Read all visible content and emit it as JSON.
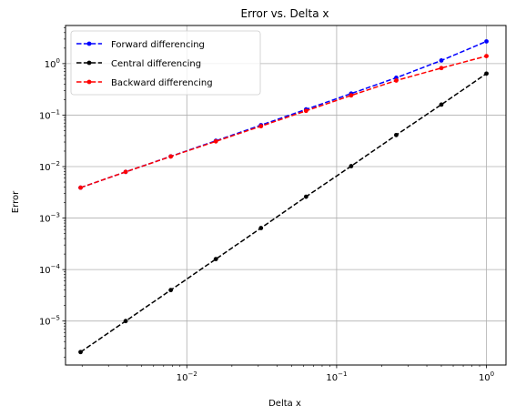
{
  "chart_data": {
    "type": "line",
    "title": "Error vs. Delta x",
    "xlabel": "Delta x",
    "ylabel": "Error",
    "xscale": "log",
    "yscale": "log",
    "xlim": [
      0.00155,
      1.35
    ],
    "ylim": [
      1.4e-06,
      5.5
    ],
    "x_ticks": [
      {
        "value": 0.01,
        "base": "10",
        "exp": "−2"
      },
      {
        "value": 0.1,
        "base": "10",
        "exp": "−1"
      },
      {
        "value": 1,
        "base": "10",
        "exp": "0"
      }
    ],
    "y_ticks": [
      {
        "value": 1e-05,
        "base": "10",
        "exp": "−5"
      },
      {
        "value": 0.0001,
        "base": "10",
        "exp": "−4"
      },
      {
        "value": 0.001,
        "base": "10",
        "exp": "−3"
      },
      {
        "value": 0.01,
        "base": "10",
        "exp": "−2"
      },
      {
        "value": 0.1,
        "base": "10",
        "exp": "−1"
      },
      {
        "value": 1,
        "base": "10",
        "exp": "0"
      }
    ],
    "grid": true,
    "legend_position": "top-left",
    "x": [
      0.001953125,
      0.00390625,
      0.0078125,
      0.015625,
      0.03125,
      0.0625,
      0.125,
      0.25,
      0.5,
      1.0
    ],
    "series": [
      {
        "name": "Forward differencing",
        "color": "#0000ff",
        "values": [
          0.0039,
          0.0079,
          0.0158,
          0.0317,
          0.0638,
          0.129,
          0.262,
          0.531,
          1.15,
          2.7
        ]
      },
      {
        "name": "Central differencing",
        "color": "#000000",
        "values": [
          2.5e-06,
          1e-05,
          4e-05,
          0.00016,
          0.00064,
          0.0026,
          0.0102,
          0.041,
          0.16,
          0.64
        ]
      },
      {
        "name": "Backward differencing",
        "color": "#ff0000",
        "values": [
          0.0039,
          0.0079,
          0.0157,
          0.0309,
          0.0609,
          0.121,
          0.241,
          0.47,
          0.82,
          1.4
        ]
      }
    ]
  }
}
